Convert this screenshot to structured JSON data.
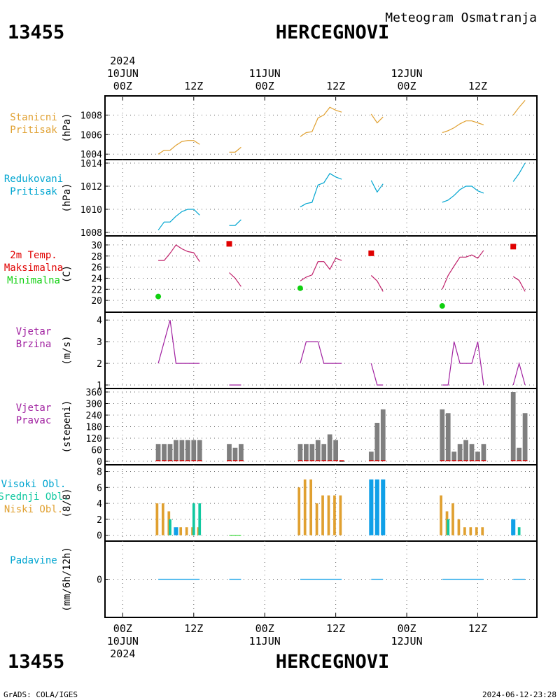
{
  "header": {
    "subtitle": "Meteogram Osmatranja",
    "station_id": "13455",
    "station_name": "HERCEGNOVI",
    "footer_left": "GrADS: COLA/IGES",
    "footer_right": "2024-06-12-23:28"
  },
  "colors": {
    "orange": "#e0a030",
    "cyan": "#00a5d0",
    "red": "#e00000",
    "green": "#10d010",
    "purple": "#a020a0",
    "gray": "#7f7f7f",
    "teal": "#10c8a0",
    "blue": "#10a0e8"
  },
  "time_axis": {
    "year": "2024",
    "top_labels": [
      {
        "t": 0,
        "hour": "00Z",
        "date": "10JUN",
        "year": "2024"
      },
      {
        "t": 12,
        "hour": "12Z"
      },
      {
        "t": 24,
        "hour": "00Z",
        "date": "11JUN"
      },
      {
        "t": 36,
        "hour": "12Z"
      },
      {
        "t": 48,
        "hour": "00Z",
        "date": "12JUN"
      },
      {
        "t": 60,
        "hour": "12Z"
      }
    ],
    "range_hours": [
      -3,
      70
    ],
    "tick_hours": [
      0,
      12,
      24,
      36,
      48,
      60
    ]
  },
  "chart_data": [
    {
      "id": "stanicni",
      "type": "line",
      "label_lines": [
        "Stanicni",
        "Pritisak"
      ],
      "label_color": "#e0a030",
      "unit": "(hPa)",
      "ylim": [
        1003.8,
        1009.6
      ],
      "yticks": [
        1004,
        1006,
        1008
      ],
      "series": [
        {
          "color": "#e0a030",
          "segments": [
            [
              [
                6,
                1004.0
              ],
              [
                7,
                1004.4
              ],
              [
                8,
                1004.4
              ],
              [
                9,
                1004.9
              ],
              [
                10,
                1005.3
              ],
              [
                11,
                1005.4
              ],
              [
                12,
                1005.4
              ],
              [
                13,
                1005.0
              ]
            ],
            [
              [
                18,
                1004.2
              ],
              [
                19,
                1004.2
              ],
              [
                20,
                1004.7
              ]
            ],
            [
              [
                30,
                1005.8
              ],
              [
                31,
                1006.2
              ],
              [
                32,
                1006.3
              ],
              [
                33,
                1007.7
              ],
              [
                34,
                1008.0
              ],
              [
                35,
                1008.8
              ],
              [
                36,
                1008.5
              ],
              [
                37,
                1008.3
              ]
            ],
            [
              [
                42,
                1008.1
              ],
              [
                43,
                1007.2
              ],
              [
                44,
                1007.8
              ]
            ],
            [
              [
                54,
                1006.2
              ],
              [
                55,
                1006.4
              ],
              [
                56,
                1006.7
              ],
              [
                57,
                1007.1
              ],
              [
                58,
                1007.4
              ],
              [
                59,
                1007.4
              ],
              [
                60,
                1007.2
              ],
              [
                61,
                1007.0
              ]
            ],
            [
              [
                66,
                1008.0
              ],
              [
                67,
                1008.8
              ],
              [
                68,
                1009.5
              ]
            ]
          ]
        }
      ]
    },
    {
      "id": "redukovani",
      "type": "line",
      "label_lines": [
        "Redukovani",
        "Pritisak"
      ],
      "label_color": "#00a5d0",
      "unit": "(hPa)",
      "ylim": [
        1008.0,
        1014.0
      ],
      "yticks": [
        1008,
        1010,
        1012,
        1014
      ],
      "series": [
        {
          "color": "#00a5d0",
          "segments": [
            [
              [
                6,
                1008.2
              ],
              [
                7,
                1008.9
              ],
              [
                8,
                1008.9
              ],
              [
                9,
                1009.4
              ],
              [
                10,
                1009.8
              ],
              [
                11,
                1010.0
              ],
              [
                12,
                1010.0
              ],
              [
                13,
                1009.5
              ]
            ],
            [
              [
                18,
                1008.6
              ],
              [
                19,
                1008.6
              ],
              [
                20,
                1009.1
              ]
            ],
            [
              [
                30,
                1010.2
              ],
              [
                31,
                1010.5
              ],
              [
                32,
                1010.6
              ],
              [
                33,
                1012.1
              ],
              [
                34,
                1012.3
              ],
              [
                35,
                1013.1
              ],
              [
                36,
                1012.8
              ],
              [
                37,
                1012.6
              ]
            ],
            [
              [
                42,
                1012.5
              ],
              [
                43,
                1011.5
              ],
              [
                44,
                1012.2
              ]
            ],
            [
              [
                54,
                1010.6
              ],
              [
                55,
                1010.8
              ],
              [
                56,
                1011.2
              ],
              [
                57,
                1011.7
              ],
              [
                58,
                1012.0
              ],
              [
                59,
                1012.0
              ],
              [
                60,
                1011.6
              ],
              [
                61,
                1011.4
              ]
            ],
            [
              [
                66,
                1012.4
              ],
              [
                67,
                1013.1
              ],
              [
                68,
                1014.0
              ]
            ]
          ]
        }
      ]
    },
    {
      "id": "temperatura",
      "type": "line",
      "label_lines": [
        "2m Temp.",
        "Maksimalna",
        "Minimalna"
      ],
      "label_colors": [
        "#e00000",
        "#e00000",
        "#10d010"
      ],
      "unit": "(C)",
      "ylim": [
        18.5,
        31.0
      ],
      "yticks": [
        20,
        22,
        24,
        26,
        28,
        30
      ],
      "series": [
        {
          "color": "#c0206a",
          "segments": [
            [
              [
                6,
                27.2
              ],
              [
                7,
                27.2
              ],
              [
                8,
                28.5
              ],
              [
                9,
                30.0
              ],
              [
                10,
                29.3
              ],
              [
                11,
                28.8
              ],
              [
                12,
                28.6
              ],
              [
                13,
                27.0
              ]
            ],
            [
              [
                18,
                25.0
              ],
              [
                19,
                24.0
              ],
              [
                20,
                22.5
              ]
            ],
            [
              [
                30,
                23.5
              ],
              [
                31,
                24.2
              ],
              [
                32,
                24.6
              ],
              [
                33,
                27.0
              ],
              [
                34,
                27.0
              ],
              [
                35,
                25.6
              ],
              [
                36,
                27.6
              ],
              [
                37,
                27.2
              ]
            ],
            [
              [
                42,
                24.5
              ],
              [
                43,
                23.5
              ],
              [
                44,
                21.6
              ]
            ],
            [
              [
                54,
                22.0
              ],
              [
                55,
                24.5
              ],
              [
                56,
                26.2
              ],
              [
                57,
                27.8
              ],
              [
                58,
                27.8
              ],
              [
                59,
                28.2
              ],
              [
                60,
                27.6
              ],
              [
                61,
                29.0
              ]
            ],
            [
              [
                66,
                24.3
              ],
              [
                67,
                23.6
              ],
              [
                68,
                21.6
              ]
            ]
          ]
        }
      ],
      "maxima": [
        {
          "x": 18,
          "y": 30.2
        },
        {
          "x": 42,
          "y": 28.5
        },
        {
          "x": 66,
          "y": 29.7
        }
      ],
      "minima": [
        {
          "x": 6,
          "y": 20.7
        },
        {
          "x": 30,
          "y": 22.2
        },
        {
          "x": 54,
          "y": 19.0
        }
      ]
    },
    {
      "id": "vjetar_brzina",
      "type": "line",
      "label_lines": [
        "Vjetar",
        "Brzina"
      ],
      "label_color": "#a020a0",
      "unit": "(m/s)",
      "ylim": [
        1.0,
        4.2
      ],
      "yticks": [
        1,
        2,
        3,
        4
      ],
      "series": [
        {
          "color": "#a020a0",
          "segments": [
            [
              [
                6,
                2.0
              ],
              [
                8,
                4.0
              ],
              [
                9,
                2.0
              ],
              [
                13,
                2.0
              ]
            ],
            [
              [
                18,
                1.0
              ],
              [
                20,
                1.0
              ]
            ],
            [
              [
                30,
                2.0
              ],
              [
                31,
                3.0
              ],
              [
                33,
                3.0
              ],
              [
                34,
                2.0
              ],
              [
                37,
                2.0
              ]
            ],
            [
              [
                42,
                2.0
              ],
              [
                43,
                1.0
              ],
              [
                44,
                1.0
              ]
            ],
            [
              [
                54,
                1.0
              ],
              [
                55,
                1.0
              ],
              [
                56,
                3.0
              ],
              [
                57,
                2.0
              ],
              [
                59,
                2.0
              ],
              [
                60,
                3.0
              ],
              [
                61,
                1.0
              ]
            ],
            [
              [
                66,
                1.0
              ],
              [
                67,
                2.0
              ],
              [
                68,
                1.0
              ]
            ]
          ]
        }
      ]
    },
    {
      "id": "vjetar_pravac",
      "type": "bar",
      "label_lines": [
        "Vjetar",
        "Pravac"
      ],
      "label_color": "#a020a0",
      "unit": "(stepeni)",
      "ylim": [
        0,
        360
      ],
      "yticks": [
        0,
        60,
        120,
        180,
        240,
        300,
        360
      ],
      "bar_color": "#7f7f7f",
      "x": [
        6,
        7,
        8,
        9,
        10,
        11,
        12,
        13,
        18,
        19,
        20,
        30,
        31,
        32,
        33,
        34,
        35,
        36,
        37,
        42,
        43,
        44,
        54,
        55,
        56,
        57,
        58,
        59,
        60,
        61,
        66,
        67,
        68
      ],
      "values": [
        90,
        90,
        90,
        110,
        110,
        110,
        110,
        110,
        90,
        70,
        90,
        90,
        90,
        90,
        110,
        90,
        140,
        110,
        0,
        50,
        200,
        270,
        270,
        250,
        50,
        90,
        110,
        90,
        50,
        90,
        360,
        70,
        250
      ]
    },
    {
      "id": "oblaci",
      "type": "bar",
      "label_lines": [
        "Visoki Obl.",
        "Srednji Obl.",
        "Niski Obl."
      ],
      "label_colors": [
        "#00a5d0",
        "#10c8a0",
        "#e0a030"
      ],
      "unit": "(8/8)",
      "ylim": [
        -0.3,
        8.4
      ],
      "yticks": [
        0,
        2,
        4,
        6,
        8
      ],
      "series": [
        {
          "name": "Niski",
          "color": "#e0a030",
          "x": [
            6,
            7,
            8,
            10,
            11,
            12,
            13,
            30,
            31,
            32,
            33,
            34,
            35,
            36,
            37,
            54,
            55,
            56,
            57,
            58,
            59,
            60,
            61
          ],
          "values": [
            4,
            4,
            3,
            1,
            1,
            1,
            1,
            6,
            7,
            7,
            4,
            5,
            5,
            5,
            5,
            5,
            3,
            4,
            2,
            1,
            1,
            1,
            1
          ]
        },
        {
          "name": "Srednji",
          "color": "#10c8a0",
          "x": [
            8,
            12,
            13,
            55,
            67
          ],
          "values": [
            2,
            4,
            4,
            2,
            1
          ]
        },
        {
          "name": "Visoki",
          "color": "#10a0e8",
          "x": [
            9,
            42,
            43,
            44,
            66
          ],
          "values": [
            1,
            7,
            7,
            7,
            2
          ]
        }
      ]
    },
    {
      "id": "padavine",
      "type": "line",
      "label_lines": [
        "Padavine"
      ],
      "label_color": "#00a5d0",
      "unit": "(mm/6h/12h)",
      "ylim": [
        -1,
        1
      ],
      "yticks": [
        0
      ],
      "series": [
        {
          "color": "#10a0e8",
          "segments": [
            [
              [
                6,
                0
              ],
              [
                13,
                0
              ]
            ],
            [
              [
                18,
                0
              ],
              [
                20,
                0
              ]
            ],
            [
              [
                30,
                0
              ],
              [
                37,
                0
              ]
            ],
            [
              [
                42,
                0
              ],
              [
                44,
                0
              ]
            ],
            [
              [
                54,
                0
              ],
              [
                61,
                0
              ]
            ],
            [
              [
                66,
                0
              ],
              [
                68,
                0
              ]
            ]
          ]
        }
      ]
    }
  ]
}
